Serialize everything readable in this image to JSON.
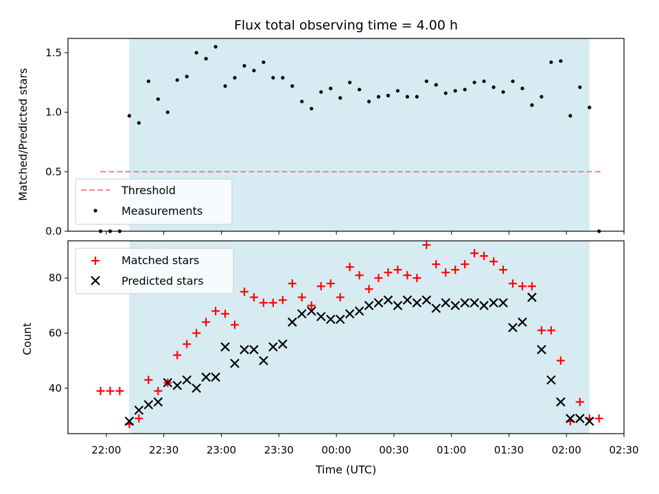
{
  "chart_data": [
    {
      "type": "scatter",
      "title": "Flux total observing time = 4.00 h",
      "xlabel": "",
      "ylabel": "Matched/Predicted stars",
      "ylim": [
        0,
        1.62
      ],
      "yticks": [
        "0.0",
        "0.5",
        "1.0",
        "1.5"
      ],
      "ytick_values": [
        0,
        0.5,
        1.0,
        1.5
      ],
      "grid": false,
      "legend_position": "lower-left",
      "observing_window": {
        "start": "22:12",
        "end": "02:12",
        "color": "#add8e6"
      },
      "threshold": {
        "name": "Threshold",
        "value": 0.5,
        "x_start": "21:57",
        "x_end": "02:18",
        "color": "#f08080"
      },
      "series": [
        {
          "name": "Measurements",
          "marker": "dot",
          "color": "#000000",
          "x": [
            "21:57",
            "22:02",
            "22:07",
            "22:12",
            "22:17",
            "22:22",
            "22:27",
            "22:32",
            "22:37",
            "22:42",
            "22:47",
            "22:52",
            "22:57",
            "23:02",
            "23:07",
            "23:12",
            "23:17",
            "23:22",
            "23:27",
            "23:32",
            "23:37",
            "23:42",
            "23:47",
            "23:52",
            "23:57",
            "00:02",
            "00:07",
            "00:12",
            "00:17",
            "00:22",
            "00:27",
            "00:32",
            "00:37",
            "00:42",
            "00:47",
            "00:52",
            "00:57",
            "01:02",
            "01:07",
            "01:12",
            "01:17",
            "01:22",
            "01:27",
            "01:32",
            "01:37",
            "01:42",
            "01:47",
            "01:52",
            "01:57",
            "02:02",
            "02:07",
            "02:12",
            "02:17"
          ],
          "values": [
            0.0,
            0.0,
            0.0,
            0.97,
            0.91,
            1.26,
            1.11,
            1.0,
            1.27,
            1.3,
            1.5,
            1.45,
            1.55,
            1.22,
            1.29,
            1.39,
            1.35,
            1.42,
            1.29,
            1.29,
            1.22,
            1.09,
            1.03,
            1.17,
            1.2,
            1.12,
            1.25,
            1.19,
            1.09,
            1.13,
            1.14,
            1.18,
            1.13,
            1.13,
            1.26,
            1.23,
            1.16,
            1.18,
            1.19,
            1.25,
            1.26,
            1.21,
            1.17,
            1.26,
            1.2,
            1.06,
            1.13,
            1.42,
            1.43,
            0.97,
            1.21,
            1.04,
            0.0
          ]
        }
      ]
    },
    {
      "type": "scatter",
      "title": "",
      "xlabel": "Time (UTC)",
      "ylabel": "Count",
      "ylim": [
        23.5,
        93.5
      ],
      "yticks": [
        "40",
        "60",
        "80"
      ],
      "ytick_values": [
        40,
        60,
        80
      ],
      "xlim": [
        "21:40",
        "02:30"
      ],
      "xticks": [
        "22:00",
        "22:30",
        "23:00",
        "23:30",
        "00:00",
        "00:30",
        "01:00",
        "01:30",
        "02:00",
        "02:30"
      ],
      "grid": false,
      "legend_position": "upper-left",
      "series": [
        {
          "name": "Matched stars",
          "marker": "plus",
          "color": "#ff0000",
          "x": [
            "21:57",
            "22:02",
            "22:07",
            "22:12",
            "22:17",
            "22:22",
            "22:27",
            "22:32",
            "22:37",
            "22:42",
            "22:47",
            "22:52",
            "22:57",
            "23:02",
            "23:07",
            "23:12",
            "23:17",
            "23:22",
            "23:27",
            "23:32",
            "23:37",
            "23:42",
            "23:47",
            "23:52",
            "23:57",
            "00:02",
            "00:07",
            "00:12",
            "00:17",
            "00:22",
            "00:27",
            "00:32",
            "00:37",
            "00:42",
            "00:47",
            "00:52",
            "00:57",
            "01:02",
            "01:07",
            "01:12",
            "01:17",
            "01:22",
            "01:27",
            "01:32",
            "01:37",
            "01:42",
            "01:47",
            "01:52",
            "01:57",
            "02:02",
            "02:07",
            "02:12",
            "02:17"
          ],
          "values": [
            39,
            39,
            39,
            27,
            29,
            43,
            39,
            42,
            52,
            56,
            60,
            64,
            68,
            67,
            63,
            75,
            73,
            71,
            71,
            72,
            78,
            73,
            70,
            77,
            78,
            73,
            84,
            81,
            76,
            80,
            82,
            83,
            81,
            80,
            92,
            85,
            82,
            83,
            85,
            89,
            88,
            86,
            83,
            78,
            77,
            77,
            61,
            61,
            50,
            28,
            35,
            29,
            29
          ]
        },
        {
          "name": "Predicted stars",
          "marker": "x",
          "color": "#000000",
          "x": [
            "22:12",
            "22:17",
            "22:22",
            "22:27",
            "22:32",
            "22:37",
            "22:42",
            "22:47",
            "22:52",
            "22:57",
            "23:02",
            "23:07",
            "23:12",
            "23:17",
            "23:22",
            "23:27",
            "23:32",
            "23:37",
            "23:42",
            "23:47",
            "23:52",
            "23:57",
            "00:02",
            "00:07",
            "00:12",
            "00:17",
            "00:22",
            "00:27",
            "00:32",
            "00:37",
            "00:42",
            "00:47",
            "00:52",
            "00:57",
            "01:02",
            "01:07",
            "01:12",
            "01:17",
            "01:22",
            "01:27",
            "01:32",
            "01:37",
            "01:42",
            "01:47",
            "01:52",
            "01:57",
            "02:02",
            "02:07",
            "02:12"
          ],
          "values": [
            28,
            32,
            34,
            35,
            42,
            41,
            43,
            40,
            44,
            44,
            55,
            49,
            54,
            54,
            50,
            55,
            56,
            64,
            67,
            68,
            66,
            65,
            65,
            67,
            68,
            70,
            71,
            72,
            70,
            72,
            71,
            72,
            69,
            71,
            70,
            71,
            71,
            70,
            71,
            71,
            62,
            64,
            73,
            54,
            43,
            35,
            29,
            29,
            28
          ]
        }
      ]
    }
  ]
}
